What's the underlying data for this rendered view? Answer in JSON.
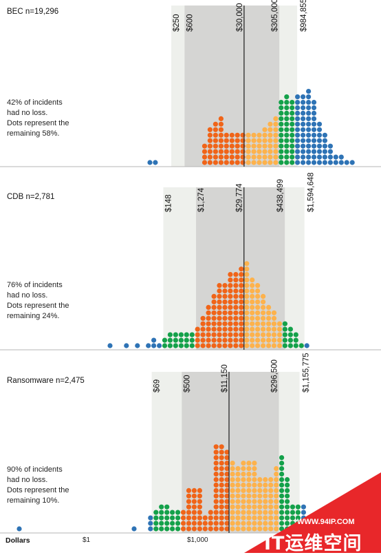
{
  "axis": {
    "title": "Dollars",
    "ticks": [
      {
        "label": "$1",
        "value": 1
      },
      {
        "label": "$1,000",
        "value": 1000
      }
    ],
    "scale": "log"
  },
  "colors": {
    "outer": "#2e73b5",
    "tail": "#14a14a",
    "inner": "#f06418",
    "upper": "#fdb24c",
    "outer_band": "#eef0ec",
    "inner_band": "#d5d5d3",
    "median_line": "#333333",
    "watermark": "#e8272a"
  },
  "chart_data": [
    {
      "type": "dot-histogram",
      "title": "BEC n=19,296",
      "note": "42% of incidents\nhad no loss.\nDots represent the\nremaining 58%.",
      "n": 19296,
      "percentiles": [
        {
          "label": "$250",
          "value": 250,
          "kind": "outer"
        },
        {
          "label": "$600",
          "value": 600,
          "kind": "inner"
        },
        {
          "label": "$30,000",
          "value": 30000,
          "kind": "median"
        },
        {
          "label": "$305,000",
          "value": 305000,
          "kind": "inner"
        },
        {
          "label": "$984,855",
          "value": 984855,
          "kind": "outer"
        }
      ],
      "column_heights": [
        1,
        1,
        0,
        0,
        0,
        0,
        0,
        0,
        0,
        0,
        4,
        7,
        8,
        9,
        6,
        6,
        6,
        6,
        6,
        6,
        6,
        7,
        8,
        9,
        12,
        13,
        12,
        13,
        13,
        14,
        12,
        8,
        6,
        4,
        2,
        2,
        1,
        1
      ]
    },
    {
      "type": "dot-histogram",
      "title": "CDB n=2,781",
      "note": "76% of incidents\nhad no loss.\nDots represent the\nremaining 24%.",
      "n": 2781,
      "percentiles": [
        {
          "label": "$148",
          "value": 148,
          "kind": "outer"
        },
        {
          "label": "$1,274",
          "value": 1274,
          "kind": "inner"
        },
        {
          "label": "$29,774",
          "value": 29774,
          "kind": "median"
        },
        {
          "label": "$438,499",
          "value": 438499,
          "kind": "inner"
        },
        {
          "label": "$1,594,648",
          "value": 1594648,
          "kind": "outer"
        }
      ],
      "column_heights": [
        1,
        0,
        0,
        1,
        0,
        1,
        0,
        1,
        2,
        1,
        2,
        3,
        3,
        3,
        3,
        3,
        4,
        6,
        8,
        10,
        12,
        12,
        14,
        14,
        15,
        16,
        13,
        12,
        10,
        8,
        7,
        5,
        5,
        4,
        3,
        1,
        1,
        0
      ]
    },
    {
      "type": "dot-histogram",
      "title": "Ransomware n=2,475",
      "note": "90% of incidents\nhad no loss.\nDots represent the\nremaining 10%.",
      "n": 2475,
      "percentiles": [
        {
          "label": "$69",
          "value": 69,
          "kind": "outer"
        },
        {
          "label": "$500",
          "value": 500,
          "kind": "inner"
        },
        {
          "label": "$11,150",
          "value": 11150,
          "kind": "median"
        },
        {
          "label": "$296,500",
          "value": 296500,
          "kind": "inner"
        },
        {
          "label": "$1,155,775",
          "value": 1155775,
          "kind": "outer"
        }
      ],
      "column_heights": [
        1,
        0,
        0,
        0,
        0,
        0,
        0,
        0,
        0,
        0,
        0,
        0,
        0,
        0,
        0,
        0,
        0,
        0,
        0,
        0,
        0,
        1,
        0,
        0,
        3,
        4,
        5,
        5,
        4,
        4,
        4,
        8,
        8,
        8,
        3,
        4,
        16,
        16,
        15,
        13,
        12,
        13,
        13,
        13,
        10,
        10,
        10,
        12,
        14,
        10,
        5,
        5,
        5
      ]
    }
  ],
  "watermark": {
    "url": "WWW.94IP.COM",
    "name": "IT运维空间"
  }
}
